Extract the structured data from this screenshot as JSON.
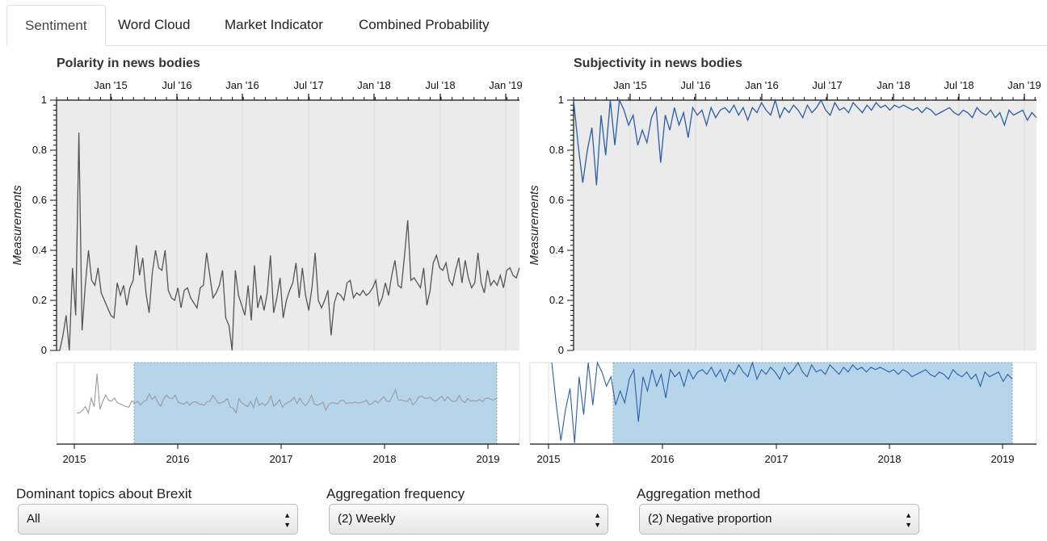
{
  "tabs": [
    {
      "label": "Sentiment",
      "active": true
    },
    {
      "label": "Word Cloud",
      "active": false
    },
    {
      "label": "Market Indicator",
      "active": false
    },
    {
      "label": "Combined Probability",
      "active": false
    }
  ],
  "charts": {
    "left": {
      "title": "Polarity in news bodies",
      "ylabel": "Measurements",
      "line_color": "#555555",
      "top_axis_ticks": [
        "Jan '15",
        "Jul '16",
        "Jan '16",
        "Jul '17",
        "Jan '18",
        "Jul '18",
        "Jan '19"
      ],
      "y_ticks": [
        "0",
        "0.2",
        "0.4",
        "0.6",
        "0.8",
        "1"
      ],
      "nav_ticks": [
        "2015",
        "2016",
        "2017",
        "2018",
        "2019"
      ]
    },
    "right": {
      "title": "Subjectivity in news bodies",
      "ylabel": "Measurements",
      "line_color": "#2a5ea8",
      "top_axis_ticks": [
        "Jan '15",
        "Jul '16",
        "Jan '16",
        "Jul '17",
        "Jan '18",
        "Jul '18",
        "Jan '19"
      ],
      "y_ticks": [
        "0",
        "0.2",
        "0.4",
        "0.6",
        "0.8",
        "1"
      ],
      "nav_ticks": [
        "2015",
        "2016",
        "2017",
        "2018",
        "2019"
      ]
    }
  },
  "chart_data": [
    {
      "type": "line",
      "title": "Polarity in news bodies",
      "ylabel": "Measurements",
      "ylim": [
        0,
        1
      ],
      "series": [
        {
          "values": [
            0,
            0,
            0.06,
            0.14,
            0,
            0.33,
            0.14,
            0.87,
            0.08,
            0.26,
            0.4,
            0.28,
            0.26,
            0.33,
            0.23,
            0.2,
            0.17,
            0.14,
            0.13,
            0.27,
            0.22,
            0.26,
            0.18,
            0.25,
            0.28,
            0.42,
            0.3,
            0.37,
            0.23,
            0.15,
            0.31,
            0.4,
            0.33,
            0.32,
            0.4,
            0.24,
            0.21,
            0.2,
            0.25,
            0.17,
            0.24,
            0.25,
            0.21,
            0.19,
            0.17,
            0.25,
            0.26,
            0.39,
            0.3,
            0.21,
            0.23,
            0.26,
            0.32,
            0.13,
            0.1,
            0.0,
            0.32,
            0.22,
            0.18,
            0.14,
            0.26,
            0.12,
            0.34,
            0.17,
            0.22,
            0.16,
            0.23,
            0.38,
            0.15,
            0.21,
            0.29,
            0.13,
            0.2,
            0.24,
            0.27,
            0.35,
            0.21,
            0.33,
            0.22,
            0.16,
            0.25,
            0.39,
            0.2,
            0.17,
            0.2,
            0.24,
            0.06,
            0.19,
            0.23,
            0.22,
            0.2,
            0.27,
            0.28,
            0.21,
            0.23,
            0.22,
            0.24,
            0.22,
            0.23,
            0.25,
            0.28,
            0.18,
            0.21,
            0.27,
            0.22,
            0.3,
            0.36,
            0.26,
            0.25,
            0.38,
            0.52,
            0.28,
            0.29,
            0.27,
            0.25,
            0.33,
            0.18,
            0.24,
            0.35,
            0.38,
            0.33,
            0.32,
            0.35,
            0.28,
            0.26,
            0.32,
            0.37,
            0.27,
            0.36,
            0.29,
            0.25,
            0.27,
            0.39,
            0.27,
            0.23,
            0.32,
            0.26,
            0.28,
            0.26,
            0.3,
            0.25,
            0.32,
            0.33,
            0.3,
            0.29,
            0.33
          ]
        }
      ]
    },
    {
      "type": "line",
      "title": "Subjectivity in news bodies",
      "ylabel": "Measurements",
      "ylim": [
        0,
        1
      ],
      "series": [
        {
          "values": [
            1.0,
            0.82,
            0.67,
            0.8,
            0.89,
            0.66,
            0.94,
            0.78,
            1.0,
            0.82,
            1.0,
            0.96,
            0.9,
            0.94,
            0.82,
            0.88,
            0.83,
            0.93,
            0.97,
            0.75,
            0.94,
            0.88,
            0.97,
            0.9,
            0.95,
            0.85,
            0.97,
            0.94,
            0.96,
            0.9,
            0.97,
            0.93,
            0.96,
            0.97,
            0.95,
            0.98,
            0.94,
            0.97,
            0.92,
            0.97,
            0.95,
            0.99,
            0.96,
            0.94,
            1.0,
            0.93,
            0.97,
            0.95,
            0.98,
            0.96,
            0.93,
            0.98,
            0.95,
            0.97,
            1.0,
            0.96,
            0.94,
            0.99,
            0.96,
            0.97,
            0.95,
            0.99,
            0.97,
            0.95,
            0.98,
            0.96,
            0.99,
            0.97,
            0.98,
            0.96,
            0.98,
            0.97,
            0.98,
            0.97,
            0.96,
            0.97,
            0.95,
            0.97,
            0.96,
            0.94,
            0.95,
            0.96,
            0.97,
            0.95,
            0.94,
            0.96,
            0.95,
            0.93,
            0.97,
            0.95,
            0.94,
            0.96,
            0.93,
            0.95,
            0.9,
            0.96,
            0.94,
            0.95,
            0.96,
            0.92,
            0.95,
            0.93
          ]
        }
      ]
    }
  ],
  "controls": [
    {
      "label": "Dominant topics about Brexit",
      "value": "All"
    },
    {
      "label": "Aggregation frequency",
      "value": "(2) Weekly"
    },
    {
      "label": "Aggregation method",
      "value": "(2) Negative proportion"
    }
  ]
}
